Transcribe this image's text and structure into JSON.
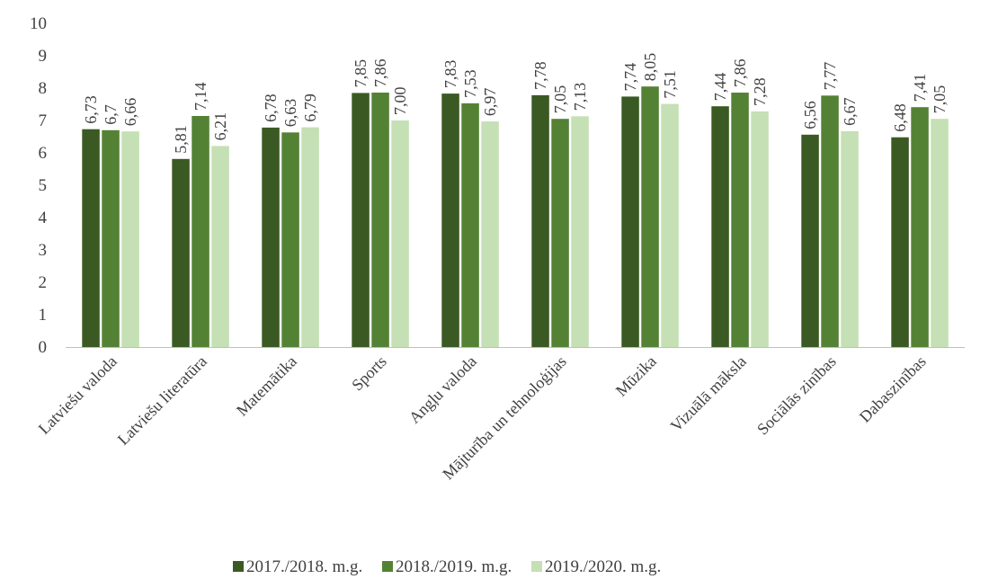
{
  "chart_data": {
    "type": "bar",
    "categories": [
      "Latviešu valoda",
      "Latviešu literatūra",
      "Matemātika",
      "Sports",
      "Angļu valoda",
      "Mājturība un tehnoloģijas",
      "Mūzika",
      "Vizuālā māksla",
      "Sociālās zinības",
      "Dabaszinības"
    ],
    "series": [
      {
        "name": "2017./2018. m.g.",
        "color": "#3b5a23",
        "values": [
          6.73,
          5.81,
          6.78,
          7.85,
          7.83,
          7.78,
          7.74,
          7.44,
          6.56,
          6.48
        ],
        "labels": [
          "6,73",
          "5,81",
          "6,78",
          "7,85",
          "7,83",
          "7,78",
          "7,74",
          "7,44",
          "6,56",
          "6,48"
        ]
      },
      {
        "name": "2018./2019. m.g.",
        "color": "#548235",
        "values": [
          6.7,
          7.14,
          6.63,
          7.86,
          7.53,
          7.05,
          8.05,
          7.86,
          7.77,
          7.41
        ],
        "labels": [
          "6,7",
          "7,14",
          "6,63",
          "7,86",
          "7,53",
          "7,05",
          "8,05",
          "7,86",
          "7,77",
          "7,41"
        ]
      },
      {
        "name": "2019./2020. m.g.",
        "color": "#c5e0b4",
        "values": [
          6.66,
          6.21,
          6.79,
          7.0,
          6.97,
          7.13,
          7.51,
          7.28,
          6.67,
          7.05
        ],
        "labels": [
          "6,66",
          "6,21",
          "6,79",
          "7,00",
          "6,97",
          "7,13",
          "7,51",
          "7,28",
          "6,67",
          "7,05"
        ]
      }
    ],
    "yticks": [
      0,
      1,
      2,
      3,
      4,
      5,
      6,
      7,
      8,
      9,
      10
    ],
    "ylim": [
      0,
      10
    ],
    "title": "",
    "xlabel": "",
    "ylabel": "",
    "grid": false,
    "legend_position": "bottom"
  }
}
